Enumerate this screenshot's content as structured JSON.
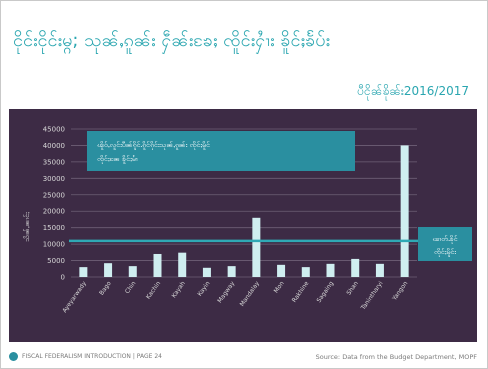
{
  "page": {
    "title": "ငိုင်းငိုင်းမ္ဂ; သုၼ်ႇၵူၼ်း ႁဵၼ်းၶႄႈ ၸိူင်းႁၢႆး ၶိူင်ႈၶႅပ်း",
    "subtitle": "ပီငိုၼ်ၶိုၼ်း2016/2017",
    "footer_left": "FISCAL FEDERALISM INTRODUCTION | PAGE 24",
    "footer_right": "Source: Data from the Budget Department, MOPF"
  },
  "colors": {
    "bar": "#cfeef0",
    "accent": "#2aa6b0",
    "panel": "#3d2b45",
    "line": "#2fa9b5"
  },
  "chart_data": {
    "type": "bar",
    "categories": [
      "Ayeyarwady",
      "Bago",
      "Chin",
      "Kachin",
      "Kayah",
      "Kayin",
      "Magway",
      "Mandalay",
      "Mon",
      "Rakhine",
      "Sagaing",
      "Shan",
      "Tanintharyi",
      "Yangon"
    ],
    "values": [
      3000,
      4200,
      3300,
      7000,
      7400,
      2800,
      3300,
      18000,
      3700,
      3000,
      4000,
      5500,
      4000,
      40000
    ],
    "ylabel": "သိၼ်ႇၼၢင်ႈ",
    "ylim": [
      0,
      45000
    ],
    "yticks": [
      0,
      5000,
      10000,
      15000,
      20000,
      25000,
      30000,
      35000,
      40000,
      45000
    ],
    "grid": true,
    "reference_line": {
      "value": 11000,
      "label_line1": "ၽၢတ်ႉၶိုင်",
      "label_line2": "ၸိုင်ႈမိူင်း"
    },
    "annotation_line1": "ၽိူဝ်ႇလူင်းပီၼ်ၵိူင်ႉၵိူင်ၵိုင်းသုၼ်ႇၵူၼ်း ၸိုင်ႈမိူင်",
    "annotation_line2": "ၸိုင်ႈၼႄ ၶိူင်ႈမၢႆ"
  }
}
